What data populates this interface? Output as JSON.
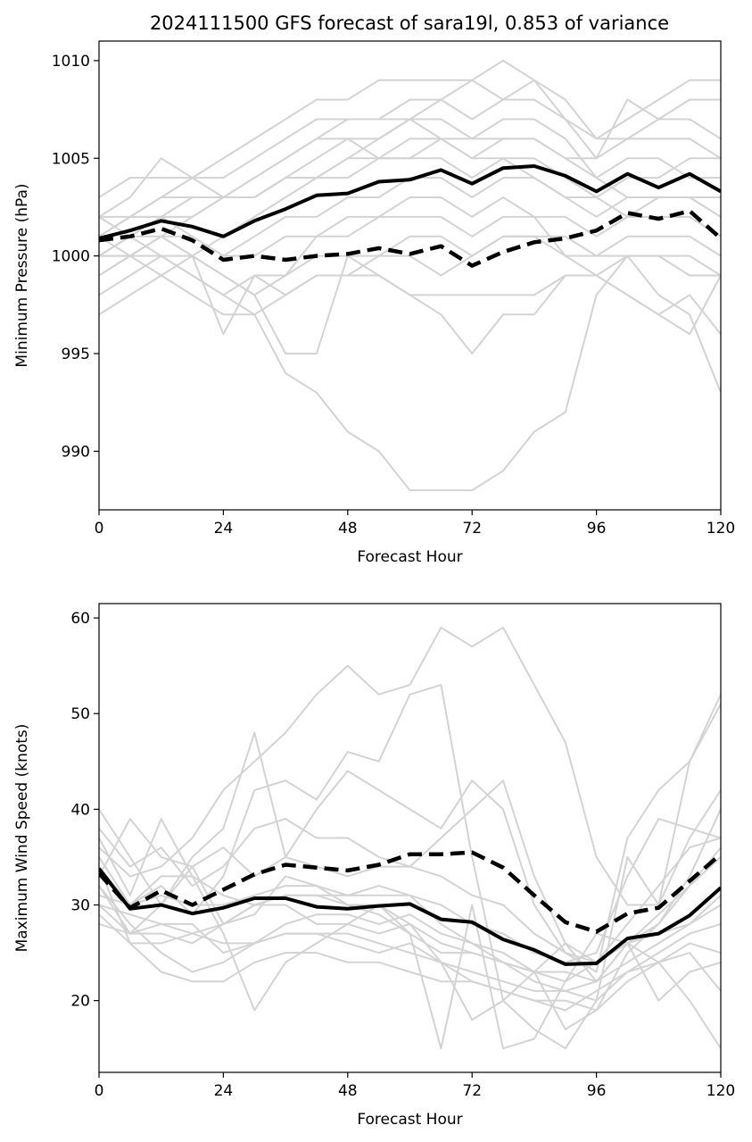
{
  "title": "2024111500 GFS forecast of sara19l, 0.853 of variance",
  "colors": {
    "ensemble": "#d3d3d3",
    "mean": "#000000",
    "background": "#ffffff"
  },
  "chart_data": [
    {
      "type": "line",
      "name": "pressure",
      "xlabel": "Forecast Hour",
      "ylabel": "Minimum Pressure (hPa)",
      "xlim": [
        0,
        120
      ],
      "ylim": [
        987,
        1011
      ],
      "xticks": [
        0,
        24,
        48,
        72,
        96,
        120
      ],
      "yticks": [
        990,
        995,
        1000,
        1005,
        1010
      ],
      "grid": false,
      "x": [
        0,
        6,
        12,
        18,
        24,
        30,
        36,
        42,
        48,
        54,
        60,
        66,
        72,
        78,
        84,
        90,
        96,
        102,
        108,
        114,
        120
      ],
      "solid_line": [
        1000.9,
        1001.3,
        1001.8,
        1001.5,
        1001.0,
        1001.8,
        1002.4,
        1003.1,
        1003.2,
        1003.8,
        1003.9,
        1004.4,
        1003.7,
        1004.5,
        1004.6,
        1004.1,
        1003.3,
        1004.2,
        1003.5,
        1004.2,
        1003.3
      ],
      "dashed_line": [
        1000.8,
        1001.0,
        1001.4,
        1000.8,
        999.8,
        1000.0,
        999.8,
        1000.0,
        1000.1,
        1000.4,
        1000.1,
        1000.5,
        999.5,
        1000.2,
        1000.7,
        1000.9,
        1001.3,
        1002.2,
        1001.9,
        1002.3,
        1000.9
      ],
      "ensemble": [
        [
          997,
          998,
          999,
          1000,
          1001,
          1002,
          1003,
          1004,
          1005,
          1006,
          1007,
          1008,
          1009,
          1010,
          1009,
          1008,
          1006,
          1007,
          1008,
          1009,
          1009
        ],
        [
          1001,
          1002,
          1003,
          1004,
          1005,
          1006,
          1007,
          1008,
          1008,
          1009,
          1009,
          1009,
          1009,
          1008,
          1009,
          1007,
          1005,
          1008,
          1007,
          1008,
          1008
        ],
        [
          1000,
          1001,
          1002,
          1002,
          1003,
          1004,
          1005,
          1006,
          1007,
          1007,
          1008,
          1008,
          1007,
          1008,
          1008,
          1007,
          1006,
          1006,
          1007,
          1007,
          1006
        ],
        [
          1001,
          1002,
          1002,
          1003,
          1003,
          1003,
          1004,
          1005,
          1006,
          1006,
          1007,
          1007,
          1006,
          1006,
          1006,
          1005,
          1005,
          1006,
          1006,
          1006,
          1005
        ],
        [
          1002,
          1003,
          1005,
          1004,
          1003,
          1004,
          1005,
          1006,
          1006,
          1005,
          1006,
          1006,
          1006,
          1007,
          1007,
          1006,
          1004,
          1005,
          1005,
          1004,
          1004
        ],
        [
          999,
          1000,
          1001,
          1002,
          1003,
          1003,
          1004,
          1004,
          1004,
          1005,
          1005,
          1005,
          1004,
          1005,
          1005,
          1004,
          1003,
          1004,
          1004,
          1005,
          1005
        ],
        [
          1003,
          1004,
          1004,
          1004,
          1004,
          1005,
          1006,
          1007,
          1007,
          1007,
          1007,
          1006,
          1005,
          1005,
          1004,
          1003,
          1003,
          1002,
          1003,
          1003,
          1003
        ],
        [
          1000,
          1000,
          1001,
          1001,
          1000,
          1001,
          1002,
          1002,
          1003,
          1003,
          1004,
          1004,
          1003,
          1004,
          1004,
          1003,
          1002,
          1003,
          1003,
          1003,
          1002
        ],
        [
          1001,
          1002,
          1002,
          1001,
          1000,
          1000,
          1001,
          1001,
          1002,
          1002,
          1003,
          1003,
          1002,
          1003,
          1002,
          1002,
          1001,
          1002,
          1002,
          1002,
          1001
        ],
        [
          1000,
          1000,
          1001,
          1000,
          999,
          998,
          999,
          1000,
          1000,
          1000,
          1001,
          1001,
          1000,
          1001,
          1001,
          1001,
          1000,
          1001,
          1001,
          1001,
          1000
        ],
        [
          999,
          1000,
          1000,
          999,
          998,
          999,
          998,
          999,
          999,
          999,
          998,
          998,
          998,
          998,
          998,
          999,
          999,
          1000,
          1000,
          1000,
          999
        ],
        [
          1002,
          1001,
          1000,
          1000,
          996,
          999,
          999,
          1001,
          1001,
          1002,
          1002,
          1002,
          1001,
          1002,
          1002,
          1000,
          1000,
          1000,
          1000,
          999,
          999
        ],
        [
          998,
          999,
          1000,
          999,
          998,
          997,
          994,
          993,
          991,
          990,
          988,
          988,
          988,
          989,
          991,
          992,
          998,
          1000,
          998,
          997,
          993
        ],
        [
          1000,
          1001,
          1001,
          1000,
          999,
          998,
          995,
          995,
          1000,
          999,
          998,
          997,
          995,
          997,
          997,
          999,
          999,
          998,
          997,
          996,
          999
        ],
        [
          1001,
          1000,
          999,
          998,
          997,
          997,
          998,
          999,
          999,
          1000,
          1000,
          999,
          1000,
          1001,
          1001,
          1000,
          999,
          998,
          997,
          998,
          996
        ],
        [
          1002,
          1002,
          1003,
          1003,
          1003,
          1003,
          1004,
          1004,
          1005,
          1005,
          1005,
          1006,
          1005,
          1006,
          1006,
          1005,
          1004,
          1003,
          1003,
          1003,
          1002
        ]
      ]
    },
    {
      "type": "line",
      "name": "wind",
      "xlabel": "Forecast Hour",
      "ylabel": "Maximum Wind Speed (knots)",
      "xlim": [
        0,
        120
      ],
      "ylim": [
        12.5,
        61.5
      ],
      "xticks": [
        0,
        24,
        48,
        72,
        96,
        120
      ],
      "yticks": [
        20,
        30,
        40,
        50,
        60
      ],
      "grid": false,
      "x": [
        0,
        6,
        12,
        18,
        24,
        30,
        36,
        42,
        48,
        54,
        60,
        66,
        72,
        78,
        84,
        90,
        96,
        102,
        108,
        114,
        120
      ],
      "solid_line": [
        33.8,
        29.6,
        30.0,
        29.1,
        29.7,
        30.7,
        30.7,
        29.8,
        29.6,
        29.9,
        30.1,
        28.5,
        28.2,
        26.4,
        25.3,
        23.8,
        23.9,
        26.5,
        27.0,
        28.9,
        31.8
      ],
      "dashed_line": [
        33.3,
        29.7,
        31.5,
        30.0,
        31.6,
        33.2,
        34.2,
        33.9,
        33.6,
        34.2,
        35.3,
        35.3,
        35.5,
        33.9,
        31.0,
        28.2,
        27.2,
        29.1,
        29.7,
        32.5,
        35.3
      ],
      "ensemble": [
        [
          36,
          33,
          34,
          37,
          42,
          45,
          48,
          52,
          55,
          52,
          53,
          59,
          57,
          59,
          53,
          47,
          35,
          30,
          30,
          37,
          42
        ],
        [
          40,
          35,
          30,
          35,
          38,
          48,
          35,
          40,
          44,
          42,
          40,
          38,
          43,
          40,
          30,
          25,
          24,
          28,
          32,
          36,
          37
        ],
        [
          38,
          34,
          36,
          32,
          34,
          38,
          39,
          37,
          37,
          35,
          34,
          37,
          40,
          43,
          33,
          26,
          22,
          26,
          28,
          33,
          40
        ],
        [
          35,
          30,
          32,
          29,
          33,
          42,
          43,
          41,
          46,
          45,
          52,
          53,
          35,
          20,
          17,
          15,
          20,
          35,
          30,
          45,
          51
        ],
        [
          33,
          39,
          35,
          34,
          36,
          33,
          35,
          34,
          33,
          34,
          34,
          33,
          31,
          30,
          27,
          25,
          23,
          37,
          42,
          45,
          52
        ],
        [
          31,
          30,
          33,
          33,
          31,
          30,
          31,
          31,
          31,
          32,
          31,
          30,
          28,
          27,
          25,
          24,
          25,
          33,
          39,
          38,
          37
        ],
        [
          30,
          27,
          28,
          27,
          28,
          30,
          30,
          28,
          28,
          27,
          28,
          26,
          25,
          24,
          23,
          22,
          24,
          26,
          29,
          32,
          35
        ],
        [
          34,
          26,
          26,
          27,
          26,
          26,
          28,
          29,
          29,
          28,
          29,
          27,
          26,
          24,
          22,
          21,
          22,
          24,
          26,
          28,
          31
        ],
        [
          32,
          28,
          25,
          23,
          24,
          26,
          27,
          27,
          26,
          25,
          26,
          24,
          23,
          22,
          21,
          21,
          20,
          23,
          25,
          27,
          28
        ],
        [
          29,
          26,
          23,
          22,
          22,
          24,
          25,
          25,
          24,
          24,
          23,
          22,
          22,
          21,
          20,
          20,
          19,
          22,
          24,
          26,
          25
        ],
        [
          37,
          31,
          39,
          33,
          27,
          19,
          24,
          26,
          28,
          30,
          27,
          15,
          30,
          15,
          16,
          22,
          27,
          26,
          20,
          23,
          24
        ],
        [
          28,
          27,
          30,
          34,
          28,
          29,
          33,
          32,
          30,
          30,
          28,
          24,
          18,
          20,
          23,
          26,
          24,
          26,
          24,
          20,
          15
        ],
        [
          30,
          29,
          28,
          28,
          25,
          26,
          27,
          27,
          27,
          26,
          25,
          24,
          22,
          21,
          20,
          19,
          21,
          23,
          24,
          25,
          21
        ],
        [
          32,
          27,
          27,
          26,
          28,
          30,
          31,
          31,
          30,
          29,
          27,
          25,
          25,
          24,
          23,
          23,
          22,
          26,
          27,
          28,
          30
        ],
        [
          34,
          30,
          31,
          30,
          30,
          31,
          32,
          32,
          31,
          31,
          31,
          28,
          26,
          25,
          23,
          17,
          19,
          25,
          28,
          32,
          36
        ]
      ]
    }
  ]
}
